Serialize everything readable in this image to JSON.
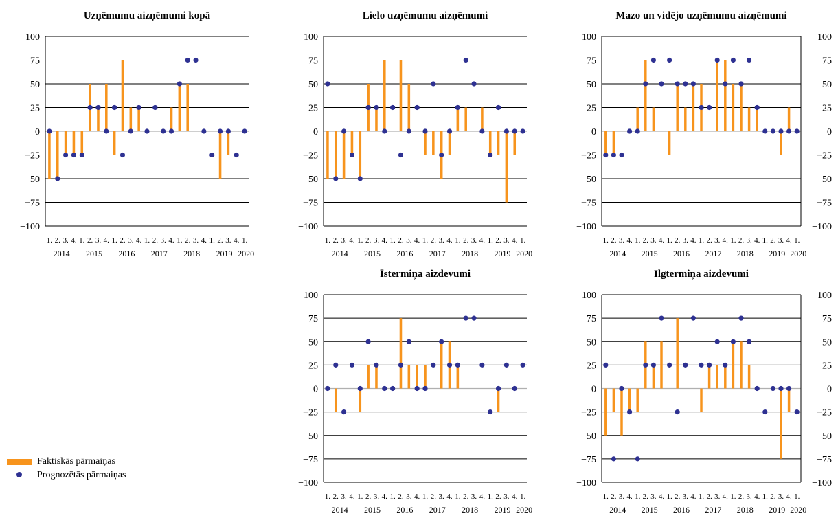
{
  "colors": {
    "bar": "#F7941D",
    "dot": "#2E3192",
    "zero": "#b0b0b0"
  },
  "legend": {
    "actual": "Faktiskās pārmaiņas",
    "forecast": "Prognozētās pārmaiņas"
  },
  "chart_data": [
    {
      "type": "bar",
      "title": "Uzņēmumu aizņēmumi kopā",
      "ylim": [
        -100,
        100
      ],
      "yticks": [
        -100,
        -75,
        -50,
        -25,
        0,
        25,
        50,
        75,
        100
      ],
      "ytick_labels": [
        "−100",
        "−75",
        "−50",
        "−25",
        "0",
        "25",
        "50",
        "75",
        "100"
      ],
      "xtick_labels": [
        "1.",
        "2.",
        "3.",
        "4.",
        "1.",
        "2.",
        "3.",
        "4.",
        "1.",
        "2.",
        "3.",
        "4.",
        "1.",
        "2.",
        "3.",
        "4.",
        "1.",
        "2.",
        "3.",
        "4.",
        "1.",
        "2.",
        "3.",
        "4.",
        "1."
      ],
      "year_labels": [
        "2014",
        "2015",
        "2016",
        "2017",
        "2018",
        "2019",
        "2020"
      ],
      "grid": true,
      "series": [
        {
          "name": "Faktiskās pārmaiņas",
          "values": [
            -50,
            -50,
            -25,
            -25,
            -25,
            50,
            25,
            50,
            -25,
            75,
            25,
            25,
            0,
            0,
            0,
            25,
            50,
            50,
            0,
            0,
            0,
            -50,
            -25,
            0
          ]
        },
        {
          "name": "Prognozētās pārmaiņas",
          "values": [
            0,
            -50,
            -25,
            -25,
            -25,
            25,
            25,
            0,
            25,
            -25,
            0,
            25,
            0,
            25,
            0,
            0,
            50,
            75,
            75,
            0,
            -25,
            0,
            0,
            -25,
            0
          ]
        }
      ]
    },
    {
      "type": "bar",
      "title": "Lielo uzņēmumu aizņēmumi",
      "ylim": [
        -100,
        100
      ],
      "yticks": [
        -100,
        -75,
        -50,
        -25,
        0,
        25,
        50,
        75,
        100
      ],
      "ytick_labels": [
        "−100",
        "−75",
        "−50",
        "−25",
        "0",
        "25",
        "50",
        "75",
        "100"
      ],
      "xtick_labels": [
        "1.",
        "2.",
        "3.",
        "4.",
        "1.",
        "2.",
        "3.",
        "4.",
        "1.",
        "2.",
        "3.",
        "4.",
        "1.",
        "2.",
        "3.",
        "4.",
        "1.",
        "2.",
        "3.",
        "4.",
        "1.",
        "2.",
        "3.",
        "4.",
        "1."
      ],
      "year_labels": [
        "2014",
        "2015",
        "2016",
        "2017",
        "2018",
        "2019",
        "2020"
      ],
      "grid": true,
      "series": [
        {
          "name": "Faktiskās pārmaiņas",
          "values": [
            -50,
            -50,
            -50,
            -25,
            -50,
            50,
            25,
            75,
            0,
            75,
            50,
            0,
            -25,
            -25,
            -50,
            -25,
            25,
            25,
            0,
            25,
            -25,
            -25,
            -75,
            -25
          ]
        },
        {
          "name": "Prognozētās pārmaiņas",
          "values": [
            50,
            -50,
            0,
            -25,
            -50,
            25,
            25,
            0,
            25,
            -25,
            0,
            25,
            0,
            50,
            -25,
            0,
            25,
            75,
            50,
            0,
            -25,
            25,
            0,
            0,
            0
          ]
        }
      ]
    },
    {
      "type": "bar",
      "title": "Mazo un vidējo uzņēmumu aizņēmumi",
      "ylim": [
        -100,
        100
      ],
      "yticks": [
        -100,
        -75,
        -50,
        -25,
        0,
        25,
        50,
        75,
        100
      ],
      "ytick_labels": [
        "−100",
        "−75",
        "−50",
        "−25",
        "0",
        "25",
        "50",
        "75",
        "100"
      ],
      "xtick_labels": [
        "1.",
        "2.",
        "3.",
        "4.",
        "1.",
        "2.",
        "3.",
        "4.",
        "1.",
        "2.",
        "3.",
        "4.",
        "1.",
        "2.",
        "3.",
        "4.",
        "1.",
        "2.",
        "3.",
        "4.",
        "1.",
        "2.",
        "3.",
        "4.",
        "1."
      ],
      "year_labels": [
        "2014",
        "2015",
        "2016",
        "2017",
        "2018",
        "2019",
        "2020"
      ],
      "grid": true,
      "right_axis": true,
      "series": [
        {
          "name": "Faktiskās pārmaiņas",
          "values": [
            -25,
            -25,
            0,
            0,
            25,
            75,
            25,
            0,
            -25,
            50,
            25,
            50,
            50,
            0,
            75,
            75,
            50,
            50,
            25,
            25,
            0,
            0,
            -25,
            25
          ]
        },
        {
          "name": "Prognozētās pārmaiņas",
          "values": [
            -25,
            -25,
            -25,
            0,
            0,
            50,
            75,
            50,
            75,
            50,
            50,
            50,
            25,
            25,
            75,
            50,
            75,
            50,
            75,
            25,
            0,
            0,
            0,
            0,
            0
          ]
        }
      ]
    },
    {
      "type": "bar",
      "title": "Īstermiņa aizdevumi",
      "ylim": [
        -100,
        100
      ],
      "yticks": [
        -100,
        -75,
        -50,
        -25,
        0,
        25,
        50,
        75,
        100
      ],
      "ytick_labels": [
        "−100",
        "−75",
        "−50",
        "−25",
        "0",
        "25",
        "50",
        "75",
        "100"
      ],
      "xtick_labels": [
        "1.",
        "2.",
        "3.",
        "4.",
        "1.",
        "2.",
        "3.",
        "4.",
        "1.",
        "2.",
        "3.",
        "4.",
        "1.",
        "2.",
        "3.",
        "4.",
        "1.",
        "2.",
        "3.",
        "4.",
        "1.",
        "2.",
        "3.",
        "4.",
        "1."
      ],
      "year_labels": [
        "2014",
        "2015",
        "2016",
        "2017",
        "2018",
        "2019",
        "2020"
      ],
      "grid": true,
      "series": [
        {
          "name": "Faktiskās pārmaiņas",
          "values": [
            0,
            -25,
            0,
            0,
            -25,
            25,
            25,
            0,
            0,
            75,
            25,
            25,
            25,
            0,
            50,
            50,
            25,
            0,
            0,
            0,
            0,
            -25,
            0,
            0
          ]
        },
        {
          "name": "Prognozētās pārmaiņas",
          "values": [
            0,
            25,
            -25,
            25,
            0,
            50,
            25,
            0,
            0,
            25,
            50,
            0,
            0,
            25,
            50,
            25,
            25,
            75,
            75,
            25,
            -25,
            0,
            25,
            0,
            25
          ]
        }
      ]
    },
    {
      "type": "bar",
      "title": "Ilgtermiņa aizdevumi",
      "ylim": [
        -100,
        100
      ],
      "yticks": [
        -100,
        -75,
        -50,
        -25,
        0,
        25,
        50,
        75,
        100
      ],
      "ytick_labels": [
        "−100",
        "−75",
        "−50",
        "−25",
        "0",
        "25",
        "50",
        "75",
        "100"
      ],
      "xtick_labels": [
        "1.",
        "2.",
        "3.",
        "4.",
        "1.",
        "2.",
        "3.",
        "4.",
        "1.",
        "2.",
        "3.",
        "4.",
        "1.",
        "2.",
        "3.",
        "4.",
        "1.",
        "2.",
        "3.",
        "4.",
        "1.",
        "2.",
        "3.",
        "4.",
        "1."
      ],
      "year_labels": [
        "2014",
        "2015",
        "2016",
        "2017",
        "2018",
        "2019",
        "2020"
      ],
      "grid": true,
      "right_axis": true,
      "series": [
        {
          "name": "Faktiskās pārmaiņas",
          "values": [
            -50,
            -25,
            -50,
            -25,
            -25,
            50,
            25,
            50,
            0,
            75,
            0,
            0,
            -25,
            25,
            25,
            25,
            50,
            50,
            25,
            0,
            0,
            0,
            -75,
            -25
          ]
        },
        {
          "name": "Prognozētās pārmaiņas",
          "values": [
            25,
            -75,
            0,
            -25,
            -75,
            25,
            25,
            75,
            25,
            -25,
            25,
            75,
            25,
            25,
            50,
            25,
            50,
            75,
            50,
            0,
            -25,
            0,
            0,
            0,
            -25
          ]
        }
      ]
    }
  ]
}
